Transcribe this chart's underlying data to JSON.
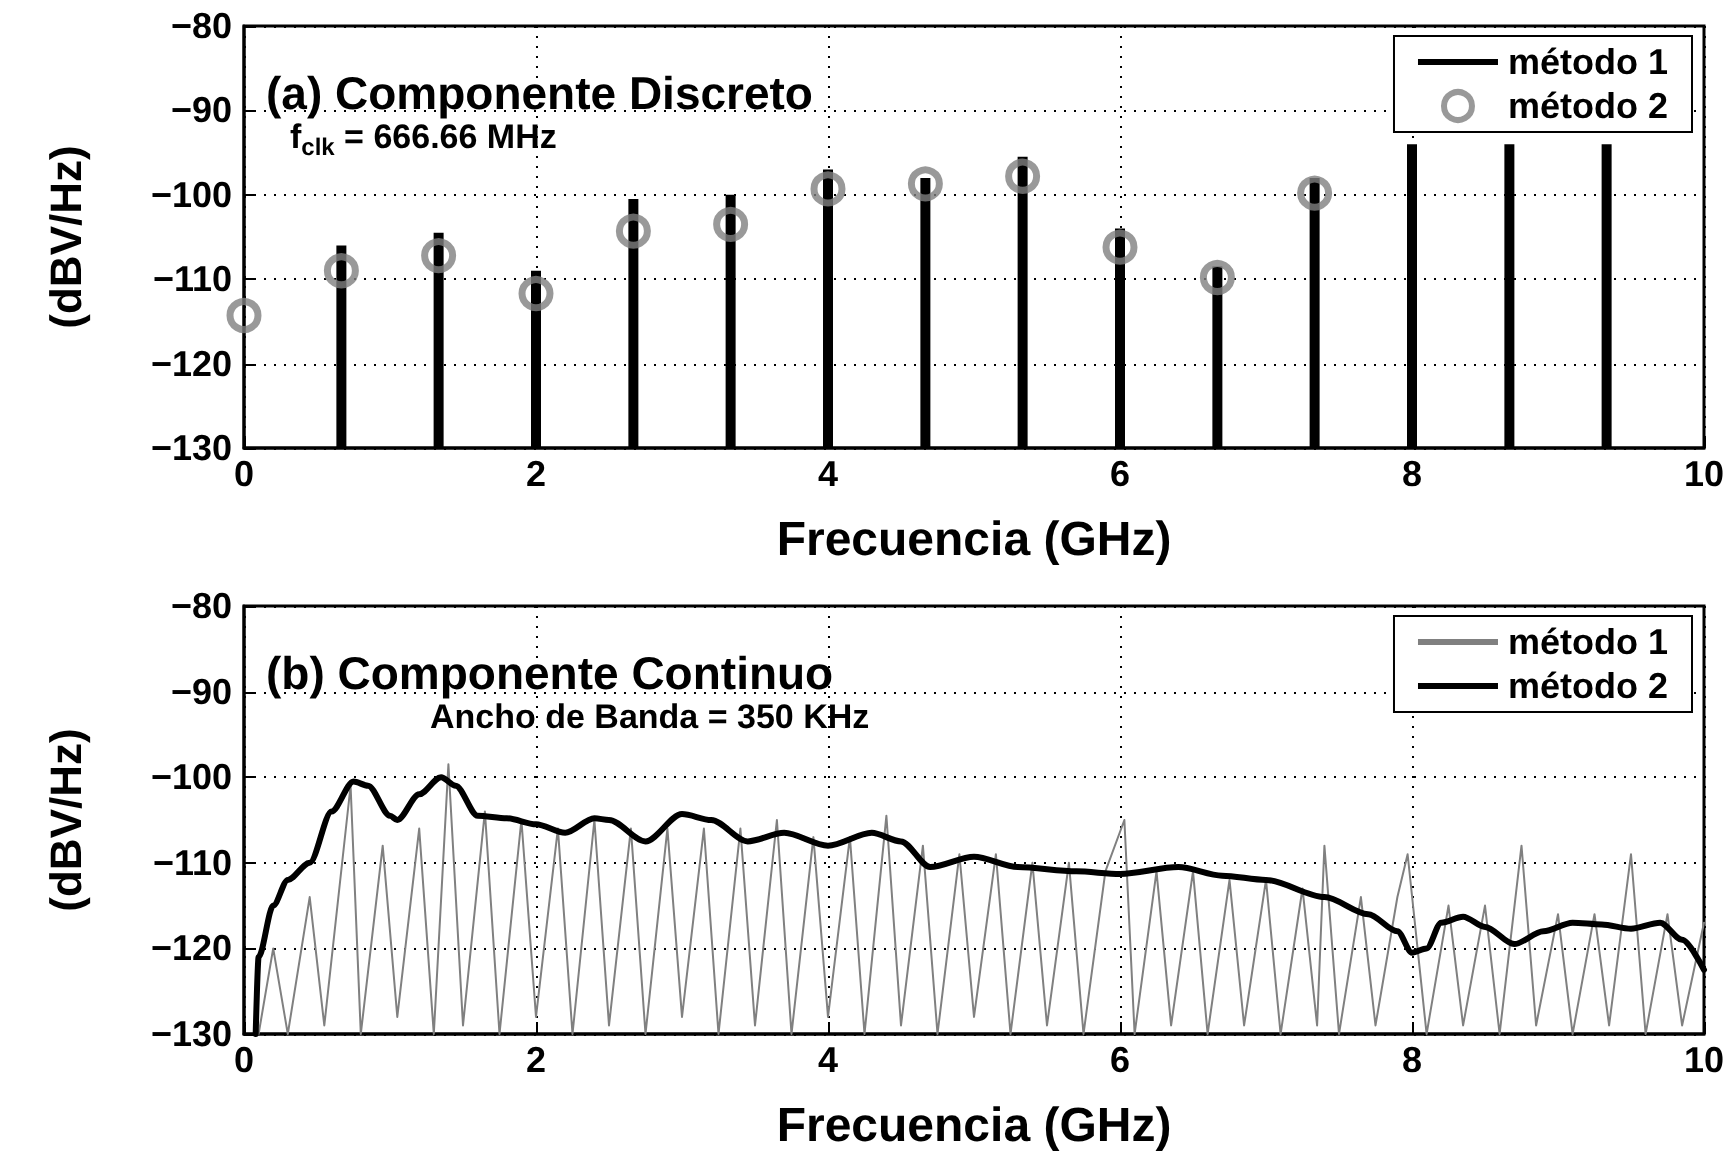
{
  "chart_data": [
    {
      "type": "bar",
      "title": "(a) Componente Discreto",
      "annotations": [
        "f$_{clk}$ = 666.66 MHz"
      ],
      "xlabel": "Frecuencia (GHz)",
      "ylabel": "(dBV/Hz)",
      "xlim": [
        0,
        10
      ],
      "ylim": [
        -130,
        -80
      ],
      "xticks": [
        0,
        2,
        4,
        6,
        8,
        10
      ],
      "yticks": [
        -130,
        -120,
        -110,
        -100,
        -90,
        -80
      ],
      "grid": true,
      "legend": "top right",
      "series": [
        {
          "name": "método 1",
          "type": "bar",
          "color": "#000000",
          "x": [
            0.667,
            1.333,
            2,
            2.667,
            3.333,
            4,
            4.667,
            5.333,
            6,
            6.667,
            7.333,
            8,
            8.667,
            9.333
          ],
          "base": [
            -130,
            -130,
            -130,
            -130,
            -130,
            -130,
            -130,
            -130,
            -130,
            -130,
            -130,
            -130,
            -130,
            -130
          ],
          "values": [
            24,
            25.5,
            21,
            29.5,
            30,
            33,
            32,
            34.5,
            26,
            21.5,
            32,
            36,
            36,
            36
          ]
        },
        {
          "name": "método 2",
          "type": "scatter",
          "marker": "circle",
          "color": "#808080",
          "x": [
            0,
            0.667,
            1.333,
            2,
            2.667,
            3.333,
            4,
            4.667,
            5.333,
            6,
            6.667,
            7.333
          ],
          "values": [
            -114.3,
            -109,
            -107.2,
            -111.7,
            -104.3,
            -103.5,
            -99.3,
            -98.7,
            -97.8,
            -106.2,
            -109.8,
            -99.8
          ]
        }
      ]
    },
    {
      "type": "line",
      "title": "(b) Componente Continuo",
      "annotations": [
        "Ancho de Banda = 350 KHz"
      ],
      "xlabel": "Frecuencia (GHz)",
      "ylabel": "(dBV/Hz)",
      "xlim": [
        0,
        10
      ],
      "ylim": [
        -130,
        -80
      ],
      "xticks": [
        0,
        2,
        4,
        6,
        8,
        10
      ],
      "yticks": [
        -130,
        -120,
        -110,
        -100,
        -90,
        -80
      ],
      "grid": true,
      "legend": "top right",
      "series": [
        {
          "name": "método 1",
          "color": "#808080",
          "x": [
            0.1,
            0.2,
            0.3,
            0.45,
            0.55,
            0.73,
            0.8,
            0.95,
            1.05,
            1.2,
            1.3,
            1.4,
            1.5,
            1.65,
            1.75,
            1.9,
            2.0,
            2.15,
            2.25,
            2.4,
            2.5,
            2.65,
            2.75,
            2.9,
            3.0,
            3.15,
            3.25,
            3.4,
            3.5,
            3.65,
            3.75,
            3.9,
            4.0,
            4.15,
            4.25,
            4.4,
            4.5,
            4.65,
            4.75,
            4.9,
            5.0,
            5.15,
            5.25,
            5.4,
            5.5,
            5.65,
            5.75,
            5.9,
            6.03,
            6.1,
            6.25,
            6.35,
            6.5,
            6.6,
            6.75,
            6.85,
            7.0,
            7.1,
            7.25,
            7.35,
            7.4,
            7.5,
            7.65,
            7.75,
            7.9,
            7.97,
            8.1,
            8.25,
            8.35,
            8.5,
            8.6,
            8.75,
            8.85,
            9.0,
            9.1,
            9.25,
            9.35,
            9.5,
            9.6,
            9.75,
            9.85,
            10.0
          ],
          "values": [
            -130,
            -120,
            -130,
            -114,
            -129,
            -101,
            -130,
            -108,
            -128,
            -106,
            -130,
            -98.5,
            -129,
            -104,
            -130,
            -105,
            -128,
            -106,
            -130,
            -105,
            -129,
            -106,
            -130,
            -106,
            -128,
            -106,
            -130,
            -106,
            -129,
            -105,
            -130,
            -107,
            -128,
            -107,
            -130,
            -104.5,
            -129,
            -108,
            -130,
            -109,
            -128,
            -109,
            -130,
            -110,
            -129,
            -110,
            -130,
            -111,
            -105,
            -130,
            -111,
            -129,
            -111,
            -130,
            -112,
            -129,
            -112,
            -130,
            -113,
            -129,
            -108,
            -130,
            -114,
            -129,
            -114,
            -109,
            -130,
            -115,
            -129,
            -115,
            -130,
            -108,
            -129,
            -116,
            -130,
            -116,
            -129,
            -109,
            -130,
            -116,
            -129,
            -117
          ]
        },
        {
          "name": "método 2",
          "color": "#000000",
          "x": [
            0.08,
            0.1,
            0.2,
            0.3,
            0.45,
            0.6,
            0.75,
            0.85,
            1.0,
            1.05,
            1.2,
            1.35,
            1.45,
            1.6,
            1.8,
            2.0,
            2.2,
            2.4,
            2.5,
            2.75,
            3.0,
            3.2,
            3.45,
            3.7,
            4.0,
            4.3,
            4.5,
            4.7,
            5.0,
            5.3,
            5.7,
            6.0,
            6.4,
            6.7,
            7.0,
            7.4,
            7.7,
            7.9,
            8.0,
            8.1,
            8.2,
            8.35,
            8.5,
            8.7,
            8.9,
            9.1,
            9.3,
            9.5,
            9.7,
            9.85,
            10.0
          ],
          "values": [
            -130,
            -121,
            -115,
            -112,
            -110,
            -104,
            -100.5,
            -101,
            -104.5,
            -105,
            -102,
            -100,
            -101,
            -104.5,
            -104.8,
            -105.5,
            -106.5,
            -104.8,
            -105,
            -107.5,
            -104.3,
            -105,
            -107.5,
            -106.5,
            -108,
            -106.5,
            -107.5,
            -110.5,
            -109.3,
            -110.5,
            -111,
            -111.3,
            -110.5,
            -111.5,
            -112,
            -114,
            -116,
            -118,
            -120.5,
            -120,
            -117,
            -116.3,
            -117.5,
            -119.5,
            -118,
            -117,
            -117.2,
            -117.7,
            -117,
            -119,
            -122.5
          ]
        }
      ]
    }
  ]
}
